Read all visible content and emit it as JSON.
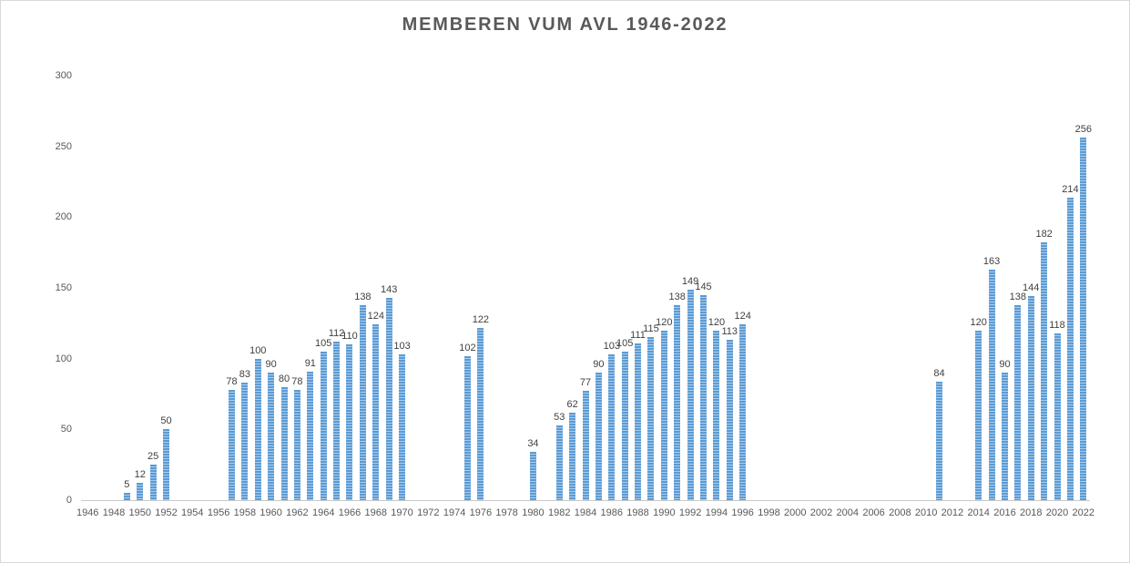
{
  "chart_data": {
    "type": "bar",
    "title": "MEMBEREN VUM AVL 1946-2022",
    "xlabel": "",
    "ylabel": "",
    "ylim": [
      0,
      300
    ],
    "y_ticks": [
      0,
      50,
      100,
      150,
      200,
      250,
      300
    ],
    "x_tick_interval": 2,
    "x_tick_labels": [
      1946,
      1948,
      1950,
      1952,
      1954,
      1956,
      1958,
      1960,
      1962,
      1964,
      1966,
      1968,
      1970,
      1972,
      1974,
      1976,
      1978,
      1980,
      1982,
      1984,
      1986,
      1988,
      1990,
      1992,
      1994,
      1996,
      1998,
      2000,
      2002,
      2004,
      2006,
      2008,
      2010,
      2012,
      2014,
      2016,
      2018,
      2020,
      2022
    ],
    "grid": false,
    "legend": "none",
    "data_labels": true,
    "categories": [
      1946,
      1947,
      1948,
      1949,
      1950,
      1951,
      1952,
      1953,
      1954,
      1955,
      1956,
      1957,
      1958,
      1959,
      1960,
      1961,
      1962,
      1963,
      1964,
      1965,
      1966,
      1967,
      1968,
      1969,
      1970,
      1971,
      1972,
      1973,
      1974,
      1975,
      1976,
      1977,
      1978,
      1979,
      1980,
      1981,
      1982,
      1983,
      1984,
      1985,
      1986,
      1987,
      1988,
      1989,
      1990,
      1991,
      1992,
      1993,
      1994,
      1995,
      1996,
      1997,
      1998,
      1999,
      2000,
      2001,
      2002,
      2003,
      2004,
      2005,
      2006,
      2007,
      2008,
      2009,
      2010,
      2011,
      2012,
      2013,
      2014,
      2015,
      2016,
      2017,
      2018,
      2019,
      2020,
      2021,
      2022
    ],
    "values": [
      null,
      null,
      null,
      5,
      12,
      25,
      50,
      null,
      null,
      null,
      null,
      78,
      83,
      100,
      90,
      80,
      78,
      91,
      105,
      112,
      110,
      138,
      124,
      143,
      103,
      null,
      null,
      null,
      null,
      102,
      122,
      null,
      null,
      null,
      34,
      null,
      53,
      62,
      77,
      90,
      103,
      105,
      111,
      115,
      120,
      138,
      149,
      145,
      120,
      113,
      124,
      null,
      null,
      null,
      null,
      null,
      null,
      null,
      null,
      null,
      null,
      null,
      null,
      null,
      null,
      84,
      null,
      null,
      120,
      163,
      90,
      138,
      144,
      182,
      118,
      214,
      256
    ],
    "colors": {
      "bar": "#5b9bd5",
      "bar_stripe": "#a9cbea",
      "title": "#595959",
      "data_label": "#404040",
      "axis_text": "#595959",
      "axis_line": "#c9c9c9",
      "frame_border": "#d9d9d9",
      "background": "#ffffff"
    }
  }
}
